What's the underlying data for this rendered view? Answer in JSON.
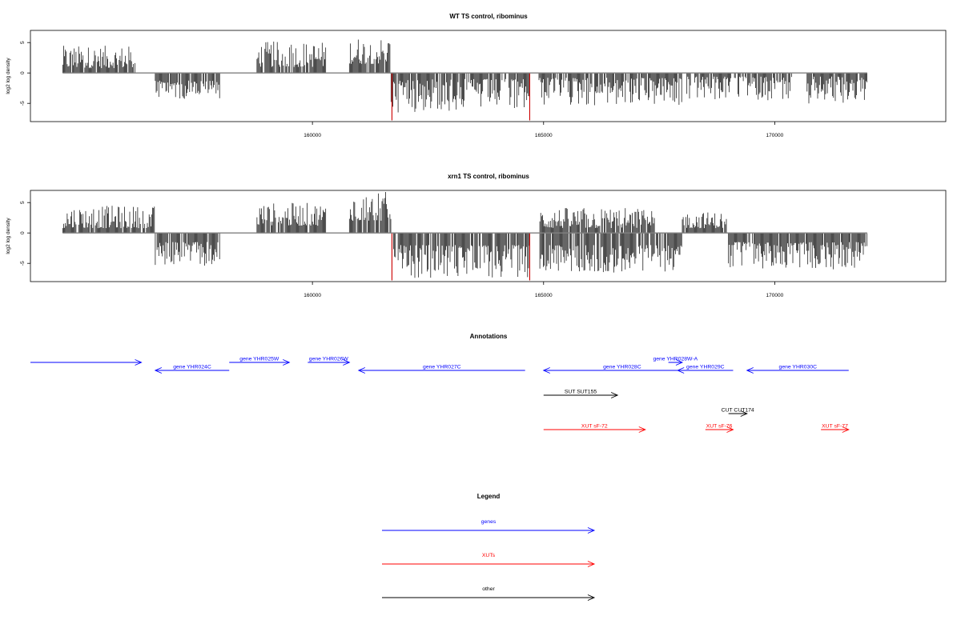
{
  "chart_data": [
    {
      "type": "bar",
      "title": "WT TS control, ribominus",
      "ylabel": "log2 log density",
      "xlim": [
        153900,
        173700
      ],
      "ylim": [
        -8,
        7
      ],
      "x_ticks": [
        "160000",
        "165000",
        "170000"
      ],
      "x_tick_values": [
        160000,
        165000,
        170000
      ],
      "y_ticks": [
        "5",
        "0",
        "-5"
      ],
      "y_tick_values": [
        5,
        0,
        -5
      ],
      "density_segments": [
        {
          "start": 154600,
          "end": 156200,
          "strand": "+",
          "min": 0.8,
          "max": 4.5
        },
        {
          "start": 156600,
          "end": 158000,
          "strand": "-",
          "min": 1.2,
          "max": 4.3
        },
        {
          "start": 158800,
          "end": 160300,
          "strand": "+",
          "min": 1.0,
          "max": 5.2
        },
        {
          "start": 160800,
          "end": 161700,
          "strand": "+",
          "min": 1.5,
          "max": 6.0
        },
        {
          "start": 161700,
          "end": 164700,
          "strand": "-",
          "min": 1.0,
          "max": 6.5
        },
        {
          "start": 164900,
          "end": 168000,
          "strand": "-",
          "min": 0.8,
          "max": 5.5
        },
        {
          "start": 168100,
          "end": 170400,
          "strand": "-",
          "min": 0.6,
          "max": 4.5
        },
        {
          "start": 170700,
          "end": 172000,
          "strand": "-",
          "min": 0.6,
          "max": 5.0
        }
      ],
      "spikes": [
        {
          "x": 161720,
          "y": -7.8
        },
        {
          "x": 164700,
          "y": -7.8
        }
      ]
    },
    {
      "type": "bar",
      "title": "xrn1 TS control, ribominus",
      "ylabel": "log2 log density",
      "xlim": [
        153900,
        173700
      ],
      "ylim": [
        -8,
        7
      ],
      "x_ticks": [
        "160000",
        "165000",
        "170000"
      ],
      "x_tick_values": [
        160000,
        165000,
        170000
      ],
      "y_ticks": [
        "5",
        "0",
        "-5"
      ],
      "y_tick_values": [
        5,
        0,
        -5
      ],
      "density_segments": [
        {
          "start": 154600,
          "end": 156600,
          "strand": "+",
          "min": 0.8,
          "max": 4.5
        },
        {
          "start": 156600,
          "end": 158000,
          "strand": "-",
          "min": 1.5,
          "max": 5.5
        },
        {
          "start": 158800,
          "end": 160300,
          "strand": "+",
          "min": 1.2,
          "max": 5.0
        },
        {
          "start": 160800,
          "end": 161700,
          "strand": "+",
          "min": 2.0,
          "max": 6.8
        },
        {
          "start": 161700,
          "end": 164700,
          "strand": "-",
          "min": 2.0,
          "max": 7.5
        },
        {
          "start": 164900,
          "end": 167400,
          "strand": "+",
          "min": 0.8,
          "max": 4.2
        },
        {
          "start": 164900,
          "end": 168000,
          "strand": "-",
          "min": 2.0,
          "max": 6.5
        },
        {
          "start": 168000,
          "end": 169000,
          "strand": "+",
          "min": 0.8,
          "max": 3.5
        },
        {
          "start": 169000,
          "end": 172000,
          "strand": "-",
          "min": 1.5,
          "max": 6.0
        }
      ],
      "spikes": [
        {
          "x": 161720,
          "y": -7.8
        },
        {
          "x": 164700,
          "y": -7.8
        }
      ]
    }
  ],
  "annotations": {
    "title": "Annotations",
    "features": [
      {
        "label": "",
        "kind": "gene",
        "start": 153900,
        "end": 156300,
        "strand": "+",
        "track": 0
      },
      {
        "label": "gene YHR024C",
        "kind": "gene",
        "start": 156600,
        "end": 158200,
        "strand": "-",
        "track": 1
      },
      {
        "label": "gene YHR025W",
        "kind": "gene",
        "start": 158200,
        "end": 159500,
        "strand": "+",
        "track": 0
      },
      {
        "label": "gene YHR026W",
        "kind": "gene",
        "start": 159900,
        "end": 160800,
        "strand": "+",
        "track": 0
      },
      {
        "label": "gene YHR027C",
        "kind": "gene",
        "start": 161000,
        "end": 164600,
        "strand": "-",
        "track": 1
      },
      {
        "label": "gene YHR028C",
        "kind": "gene",
        "start": 165000,
        "end": 168400,
        "strand": "-",
        "track": 1
      },
      {
        "label": "gene YHR028W-A",
        "kind": "gene",
        "start": 167700,
        "end": 168000,
        "strand": "+",
        "track": 0
      },
      {
        "label": "gene YHR029C",
        "kind": "gene",
        "start": 167900,
        "end": 169100,
        "strand": "-",
        "track": 1
      },
      {
        "label": "gene YHR030C",
        "kind": "gene",
        "start": 169400,
        "end": 171600,
        "strand": "-",
        "track": 1
      },
      {
        "label": "SUT SUT155",
        "kind": "other",
        "start": 165000,
        "end": 166600,
        "strand": "+",
        "track": 2
      },
      {
        "label": "CUT CUT174",
        "kind": "other",
        "start": 169000,
        "end": 169400,
        "strand": "+",
        "track": 3
      },
      {
        "label": "XUT sF-72",
        "kind": "xut",
        "start": 165000,
        "end": 167200,
        "strand": "+",
        "track": 4
      },
      {
        "label": "XUT sF-76",
        "kind": "xut",
        "start": 168500,
        "end": 169100,
        "strand": "+",
        "track": 4
      },
      {
        "label": "XUT sF-77",
        "kind": "xut",
        "start": 171000,
        "end": 171600,
        "strand": "+",
        "track": 4
      }
    ]
  },
  "legend": {
    "title": "Legend",
    "items": [
      {
        "label": "genes",
        "kind": "gene"
      },
      {
        "label": "XUTs",
        "kind": "xut"
      },
      {
        "label": "other",
        "kind": "other"
      }
    ]
  },
  "colors": {
    "gene": "#0000ff",
    "xut": "#ff0000",
    "other": "#000000",
    "spike": "#cc0000",
    "bar": "#000000",
    "baseline": "#808080"
  }
}
